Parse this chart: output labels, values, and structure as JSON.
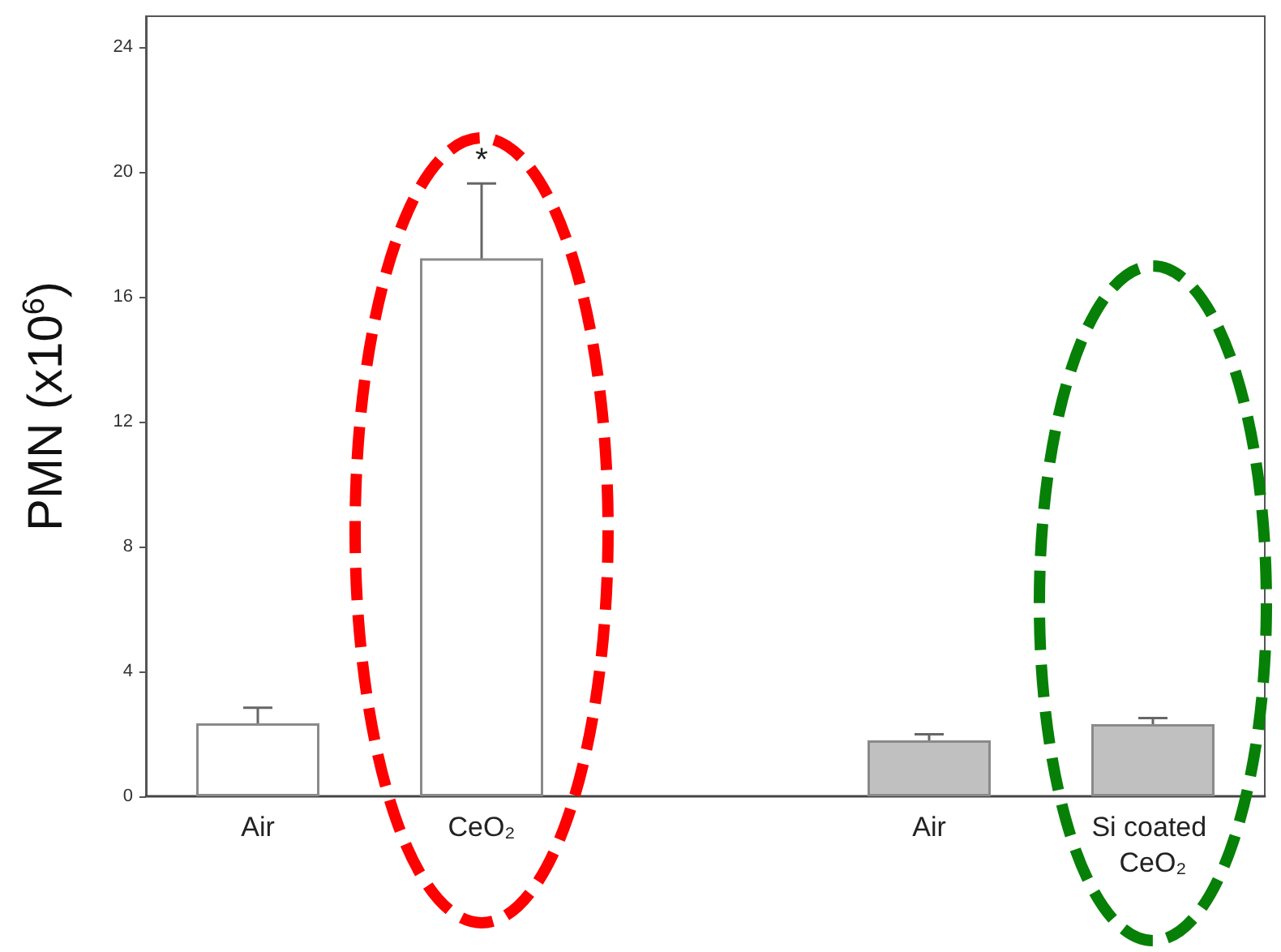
{
  "chart_data": {
    "type": "bar",
    "ylabel": "PMN (x10$^{6}$)",
    "categories": [
      "Air",
      "CeO₂",
      null,
      "Air",
      "Si coated CeO₂"
    ],
    "values": [
      2.34,
      17.24,
      null,
      1.79,
      2.31
    ],
    "colors": [
      "#ffffff",
      "#ffffff",
      null,
      "#c0c0c0",
      "#c0c0c0"
    ],
    "errors": [
      0.5,
      2.4,
      null,
      0.2,
      0.2
    ],
    "annotations": [
      {
        "text": "*",
        "x": "CeO₂",
        "y": 19.64
      }
    ],
    "ylim": [
      0,
      25
    ],
    "yticks": [
      0,
      4,
      8,
      12,
      16,
      20,
      24
    ]
  }
}
